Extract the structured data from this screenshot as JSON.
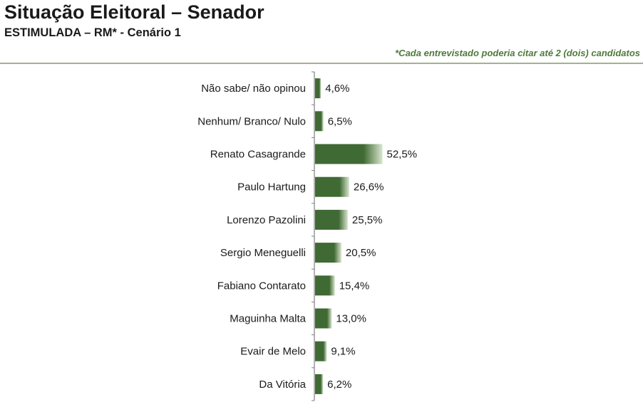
{
  "header": {
    "title": "Situação Eleitoral – Senador",
    "subtitle": "ESTIMULADA – RM* - Cenário 1",
    "note": "*Cada entrevistado poderia citar até 2 (dois) candidatos"
  },
  "colors": {
    "bar_dark": "#3f6a33",
    "bar_light": "#d9e6cf",
    "axis": "#7f7f7f",
    "note": "#4e7a3a",
    "divider": "#9fb38f"
  },
  "chart_data": {
    "type": "bar",
    "orientation": "horizontal",
    "title": "Situação Eleitoral – Senador",
    "subtitle": "ESTIMULADA – RM* - Cenário 1",
    "categories": [
      "Não sabe/ não opinou",
      "Nenhum/ Branco/ Nulo",
      "Renato Casagrande",
      "Paulo Hartung",
      "Lorenzo Pazolini",
      "Sergio Meneguelli",
      "Fabiano Contarato",
      "Maguinha Malta",
      "Evair de Melo",
      "Da Vitória"
    ],
    "values": [
      4.6,
      6.5,
      52.5,
      26.6,
      25.5,
      20.5,
      15.4,
      13.0,
      9.1,
      6.2
    ],
    "value_labels": [
      "4,6%",
      "6,5%",
      "52,5%",
      "26,6%",
      "25,5%",
      "20,5%",
      "15,4%",
      "13,0%",
      "9,1%",
      "6,2%"
    ],
    "xlim": [
      0,
      100
    ],
    "xlabel": "",
    "ylabel": "",
    "grid": false,
    "legend": "none"
  }
}
